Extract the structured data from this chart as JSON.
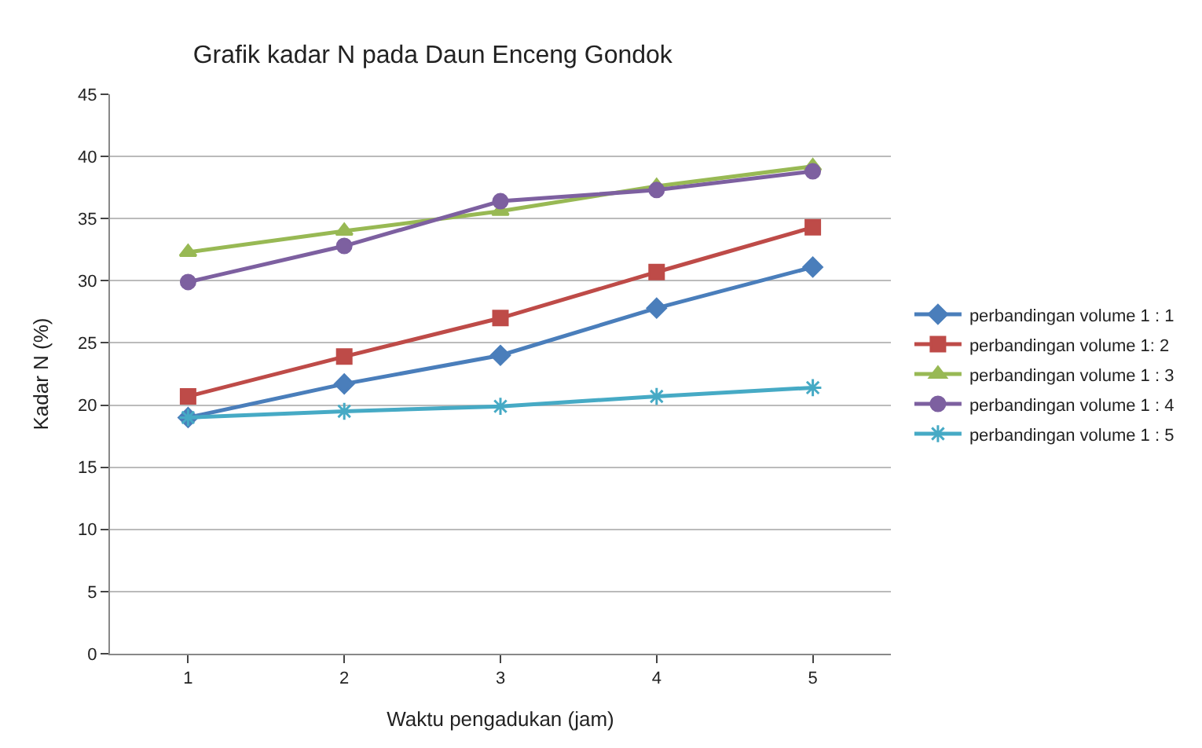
{
  "chart_data": {
    "type": "line",
    "title": "Grafik kadar N pada Daun Enceng Gondok",
    "xlabel": "Waktu pengadukan (jam)",
    "ylabel": "Kadar N (%)",
    "categories": [
      "1",
      "2",
      "3",
      "4",
      "5"
    ],
    "series": [
      {
        "name": "perbandingan volume 1 : 1",
        "color": "#4a7ebb",
        "marker": "diamond",
        "values": [
          19,
          21.7,
          24,
          27.8,
          31.1
        ]
      },
      {
        "name": "perbandingan volume 1: 2",
        "color": "#be4b48",
        "marker": "square",
        "values": [
          20.7,
          23.9,
          27,
          30.7,
          34.3
        ]
      },
      {
        "name": "perbandingan volume 1 : 3",
        "color": "#98b954",
        "marker": "triangle",
        "values": [
          32.3,
          34,
          35.6,
          37.6,
          39.2
        ]
      },
      {
        "name": "perbandingan volume 1 : 4",
        "color": "#7d60a0",
        "marker": "circle",
        "values": [
          29.9,
          32.8,
          36.4,
          37.3,
          38.8
        ]
      },
      {
        "name": "perbandingan volume 1 : 5",
        "color": "#46aac5",
        "marker": "cross",
        "values": [
          19,
          19.5,
          19.9,
          20.7,
          21.4
        ]
      }
    ],
    "ylim": [
      0,
      45
    ],
    "yticks": [
      0,
      5,
      10,
      15,
      20,
      25,
      30,
      35,
      40,
      45
    ],
    "grid": "y",
    "legend": "right",
    "line_style": "solid"
  }
}
